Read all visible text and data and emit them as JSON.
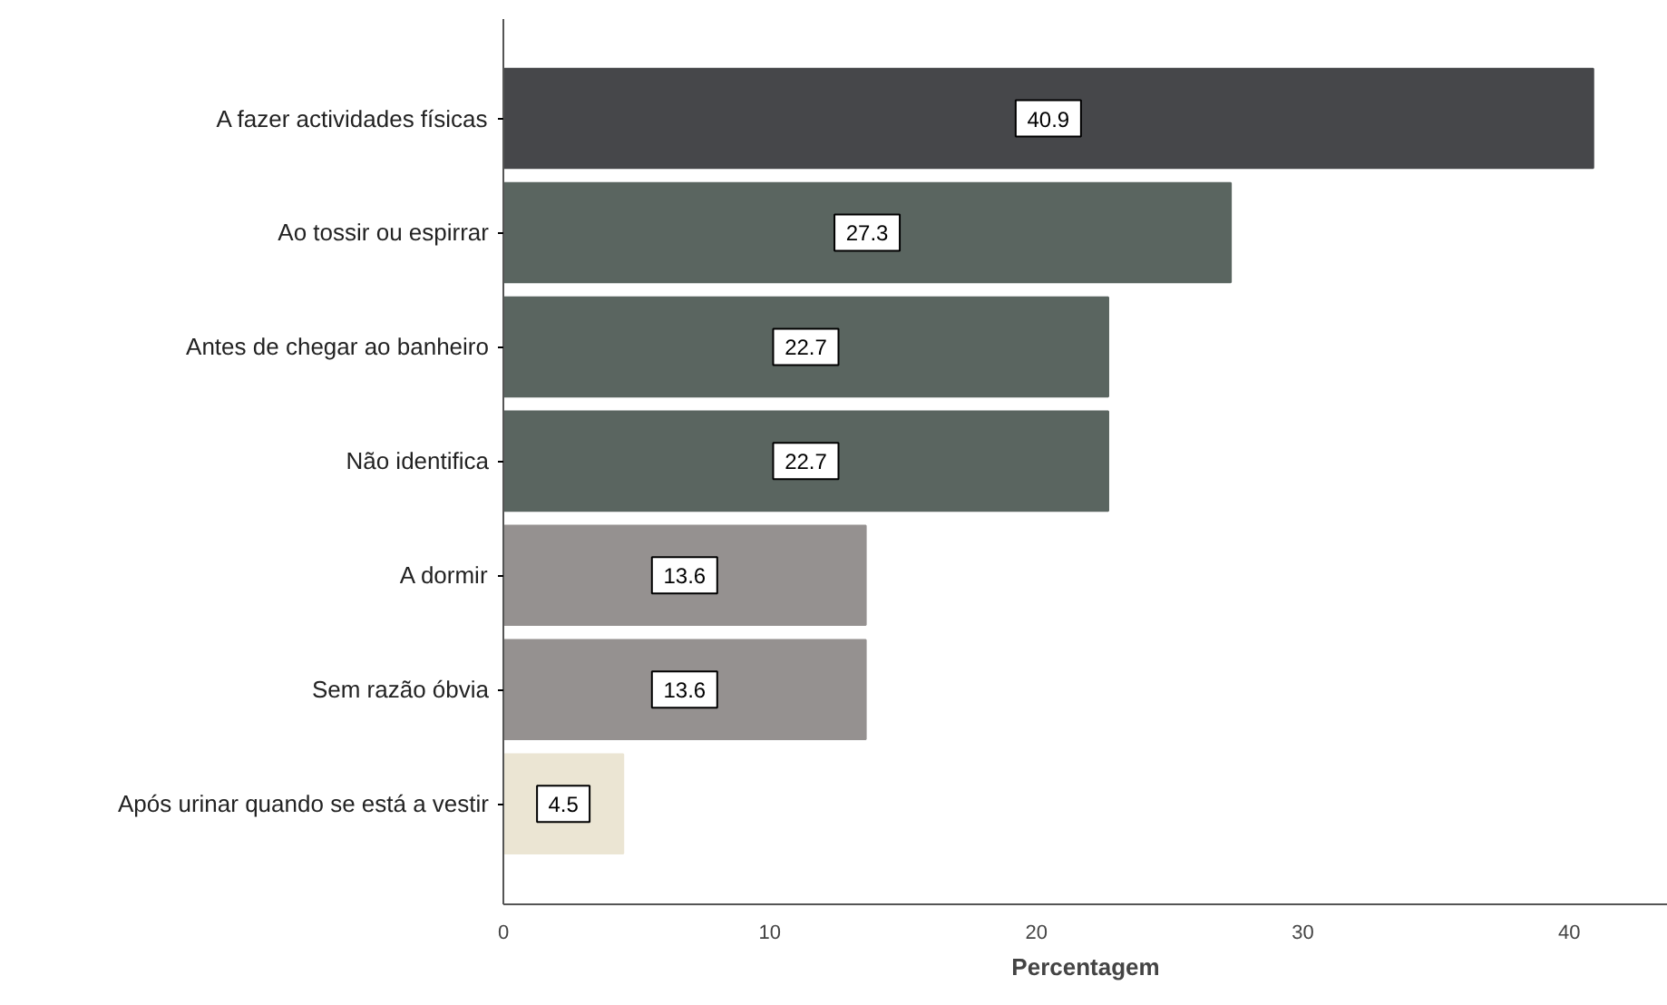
{
  "chart_data": {
    "type": "bar",
    "orientation": "horizontal",
    "xlabel": "Percentagem",
    "categories": [
      "A fazer actividades físicas",
      "Ao tossir ou espirrar",
      "Antes de chegar ao banheiro",
      "Não identifica",
      "A dormir",
      "Sem razão óbvia",
      "Após urinar quando se está a vestir"
    ],
    "values": [
      40.9,
      27.3,
      22.7,
      22.7,
      13.6,
      13.6,
      4.5
    ],
    "colors": [
      "#46474a",
      "#5a6560",
      "#5a6560",
      "#5a6560",
      "#959190",
      "#959190",
      "#ebe5d3"
    ],
    "xlim": [
      0,
      43.7
    ],
    "xticks": [
      0,
      10,
      20,
      30,
      40
    ],
    "data_labels": true,
    "grid": false
  }
}
